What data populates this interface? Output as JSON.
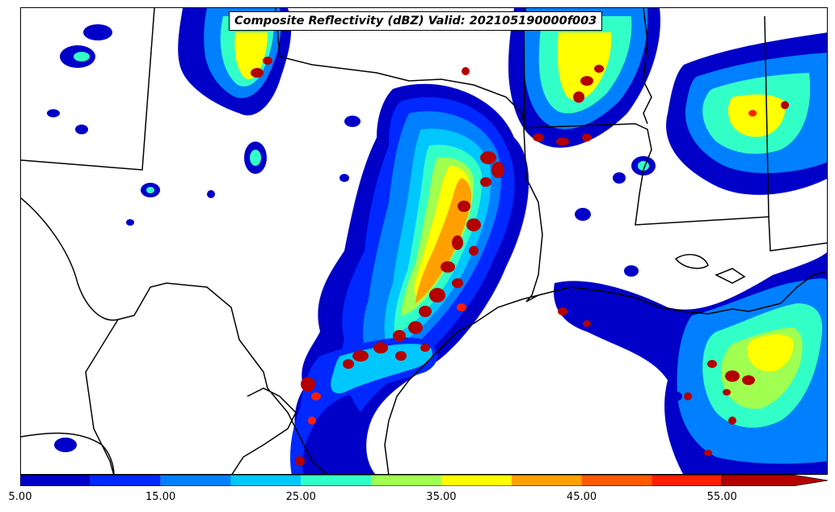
{
  "title": "Composite Reflectivity (dBZ) Valid: 202105190000f003",
  "colorbar": {
    "levels": [
      5,
      10,
      15,
      20,
      25,
      30,
      35,
      40,
      45,
      50,
      55,
      60
    ],
    "colors": [
      "#0000c8",
      "#0028ff",
      "#0080ff",
      "#00c8ff",
      "#32ffc8",
      "#a0ff50",
      "#ffff00",
      "#ffa000",
      "#ff5a00",
      "#ff1e00",
      "#b40000"
    ],
    "extend": "max",
    "ticks": [
      {
        "value": 5,
        "label": "5.00"
      },
      {
        "value": 15,
        "label": "15.00"
      },
      {
        "value": 25,
        "label": "25.00"
      },
      {
        "value": 35,
        "label": "35.00"
      },
      {
        "value": 45,
        "label": "45.00"
      },
      {
        "value": 55,
        "label": "55.00"
      }
    ]
  }
}
